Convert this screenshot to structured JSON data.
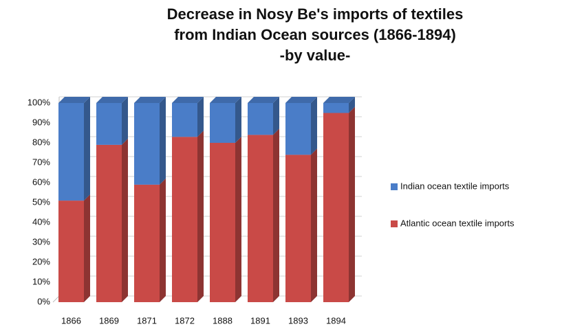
{
  "chart_data": {
    "type": "stacked_bar_3d",
    "title": [
      "Decrease in Nosy Be's imports of textiles",
      "from Indian Ocean sources (1866-1894)",
      "-by value-"
    ],
    "categories": [
      "1866",
      "1869",
      "1871",
      "1872",
      "1888",
      "1891",
      "1893",
      "1894"
    ],
    "series": [
      {
        "name": "Indian ocean textile imports",
        "color": "#4a7dc8",
        "values": [
          49,
          21,
          41,
          17,
          20,
          16,
          26,
          5
        ]
      },
      {
        "name": "Atlantic ocean textile imports",
        "color": "#c94a47",
        "values": [
          51,
          79,
          59,
          83,
          80,
          84,
          74,
          95
        ]
      }
    ],
    "ylim": [
      0,
      100
    ],
    "yticks": [
      {
        "value": 0,
        "label": "0%"
      },
      {
        "value": 10,
        "label": "10%"
      },
      {
        "value": 20,
        "label": "20%"
      },
      {
        "value": 30,
        "label": "30%"
      },
      {
        "value": 40,
        "label": "40%"
      },
      {
        "value": 50,
        "label": "50%"
      },
      {
        "value": 60,
        "label": "60%"
      },
      {
        "value": 70,
        "label": "70%"
      },
      {
        "value": 80,
        "label": "80%"
      },
      {
        "value": 90,
        "label": "90%"
      },
      {
        "value": 100,
        "label": "100%"
      }
    ],
    "grid": true,
    "legend": "right"
  }
}
